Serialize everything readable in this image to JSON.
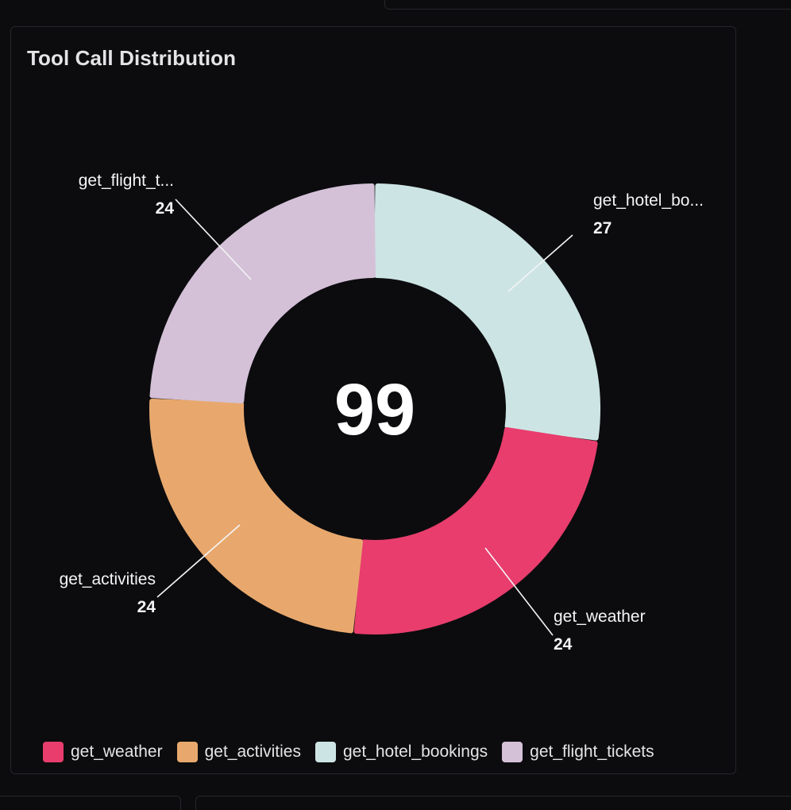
{
  "card": {
    "title": "Tool Call Distribution"
  },
  "chart_data": {
    "type": "donut",
    "title": "Tool Call Distribution",
    "total": 99,
    "total_label": "99",
    "slices": [
      {
        "name": "get_hotel_bookings",
        "short_label": "get_hotel_bo...",
        "value": 27,
        "color": "#cde4e4"
      },
      {
        "name": "get_weather",
        "short_label": "get_weather",
        "value": 24,
        "color": "#e83d6d"
      },
      {
        "name": "get_activities",
        "short_label": "get_activities",
        "value": 24,
        "color": "#e8a86d"
      },
      {
        "name": "get_flight_tickets",
        "short_label": "get_flight_t...",
        "value": 24,
        "color": "#d4c1d8"
      }
    ],
    "legend": [
      {
        "label": "get_weather",
        "color": "#e83d6d"
      },
      {
        "label": "get_activities",
        "color": "#e8a86d"
      },
      {
        "label": "get_hotel_bookings",
        "color": "#cde4e4"
      },
      {
        "label": "get_flight_tickets",
        "color": "#d4c1d8"
      }
    ],
    "legend_position": "bottom"
  }
}
